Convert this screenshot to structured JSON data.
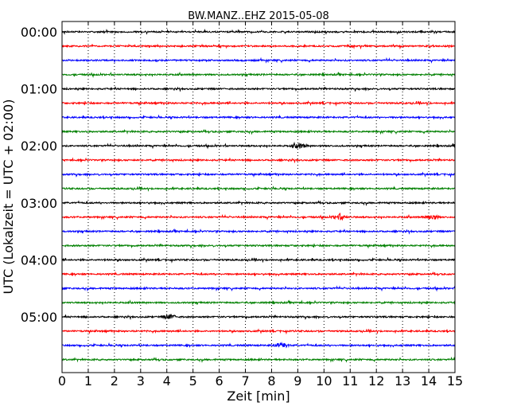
{
  "chart_data": {
    "type": "line",
    "title": "BW.MANZ..EHZ 2015-05-08",
    "xlabel": "Zeit  [min]",
    "ylabel": "UTC (Lokalzeit = UTC + 02:00)",
    "xlim": [
      0,
      15
    ],
    "x_ticks": [
      "0",
      "1",
      "2",
      "3",
      "4",
      "5",
      "6",
      "7",
      "8",
      "9",
      "10",
      "11",
      "12",
      "13",
      "14",
      "15"
    ],
    "vertical_grid": "dotted, at every minute",
    "hour_labels": [
      "00:00",
      "01:00",
      "02:00",
      "03:00",
      "04:00",
      "05:00"
    ],
    "trace_colors": [
      "#000000",
      "#ff0000",
      "#0000ff",
      "#008000"
    ],
    "traces_per_hour": 4,
    "minutes_per_trace": 15,
    "series": [
      {
        "start": "00:00",
        "color": "#000000"
      },
      {
        "start": "00:15",
        "color": "#ff0000"
      },
      {
        "start": "00:30",
        "color": "#0000ff"
      },
      {
        "start": "00:45",
        "color": "#008000"
      },
      {
        "start": "01:00",
        "color": "#000000"
      },
      {
        "start": "01:15",
        "color": "#ff0000"
      },
      {
        "start": "01:30",
        "color": "#0000ff"
      },
      {
        "start": "01:45",
        "color": "#008000"
      },
      {
        "start": "02:00",
        "color": "#000000",
        "events_min": [
          9.05
        ]
      },
      {
        "start": "02:15",
        "color": "#ff0000"
      },
      {
        "start": "02:30",
        "color": "#0000ff"
      },
      {
        "start": "02:45",
        "color": "#008000"
      },
      {
        "start": "03:00",
        "color": "#000000"
      },
      {
        "start": "03:15",
        "color": "#ff0000",
        "events_min": [
          10.6,
          14.1
        ]
      },
      {
        "start": "03:30",
        "color": "#0000ff"
      },
      {
        "start": "03:45",
        "color": "#008000"
      },
      {
        "start": "04:00",
        "color": "#000000"
      },
      {
        "start": "04:15",
        "color": "#ff0000"
      },
      {
        "start": "04:30",
        "color": "#0000ff"
      },
      {
        "start": "04:45",
        "color": "#008000"
      },
      {
        "start": "05:00",
        "color": "#000000",
        "events_min": [
          4.1
        ]
      },
      {
        "start": "05:15",
        "color": "#ff0000"
      },
      {
        "start": "05:30",
        "color": "#0000ff",
        "events_min": [
          8.4
        ]
      },
      {
        "start": "05:45",
        "color": "#008000"
      }
    ]
  }
}
